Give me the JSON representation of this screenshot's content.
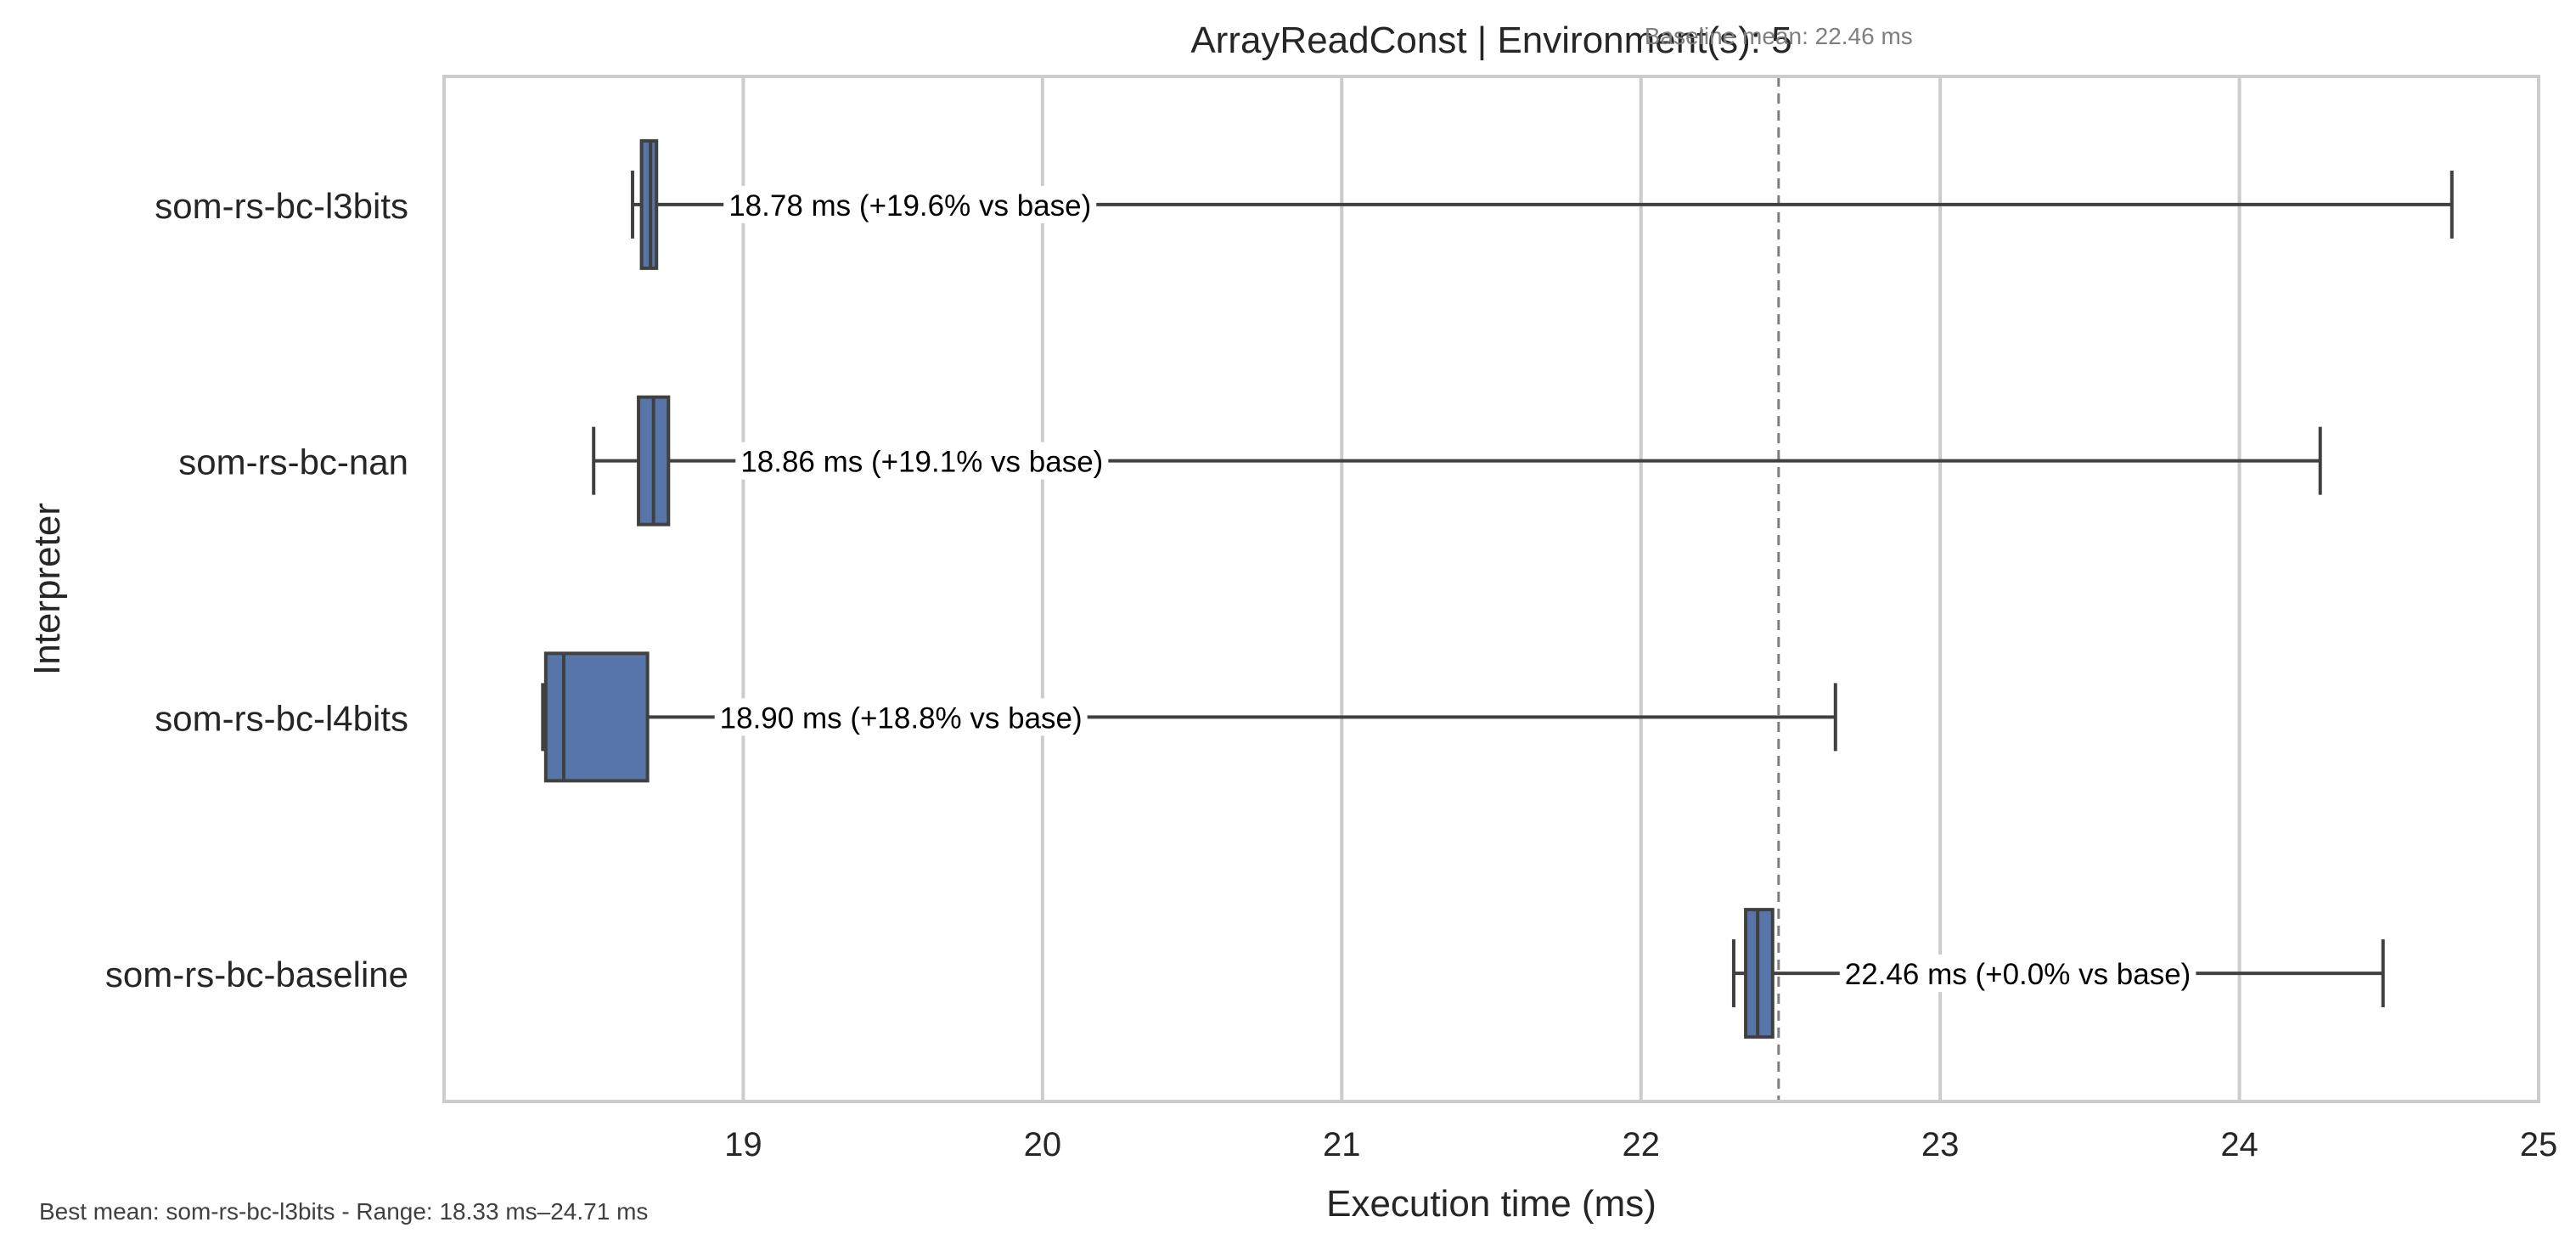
{
  "chart_data": {
    "type": "box",
    "orientation": "horizontal",
    "title": "ArrayReadConst | Environment(s): 5",
    "xlabel": "Execution time (ms)",
    "ylabel": "Interpreter",
    "xlim": [
      18.0,
      25.0
    ],
    "xticks": [
      19,
      20,
      21,
      22,
      23,
      24,
      25
    ],
    "grid": "vertical",
    "box_color": "#5875a9",
    "reference_line": {
      "value": 22.46,
      "label": "Baseline mean: 22.46 ms",
      "color": "#7f7f7f",
      "style": "dashed"
    },
    "footer": "Best mean: som-rs-bc-l3bits - Range: 18.33 ms–24.71 ms",
    "series": [
      {
        "category": "som-rs-bc-l3bits",
        "whisker_low": 18.63,
        "q1": 18.66,
        "median": 18.69,
        "q3": 18.71,
        "whisker_high": 24.71,
        "annotation": "18.78 ms  (+19.6% vs base)"
      },
      {
        "category": "som-rs-bc-nan",
        "whisker_low": 18.5,
        "q1": 18.65,
        "median": 18.7,
        "q3": 18.75,
        "whisker_high": 24.27,
        "annotation": "18.86 ms  (+19.1% vs base)"
      },
      {
        "category": "som-rs-bc-l4bits",
        "whisker_low": 18.33,
        "q1": 18.34,
        "median": 18.4,
        "q3": 18.68,
        "whisker_high": 22.65,
        "annotation": "18.90 ms  (+18.8% vs base)"
      },
      {
        "category": "som-rs-bc-baseline",
        "whisker_low": 22.31,
        "q1": 22.35,
        "median": 22.39,
        "q3": 22.44,
        "whisker_high": 24.48,
        "annotation": "22.46 ms  (+0.0% vs base)"
      }
    ]
  }
}
